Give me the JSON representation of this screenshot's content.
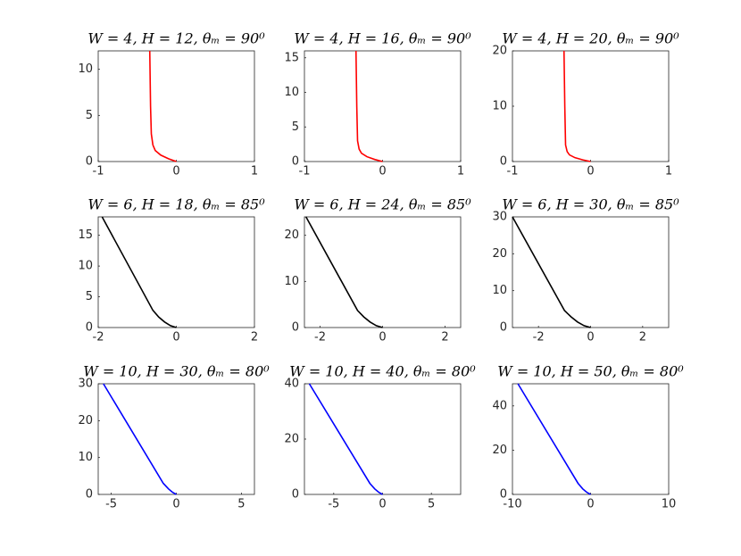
{
  "chart_data": [
    {
      "type": "line",
      "title": "W = 4, H = 12, θₘ = 90⁰",
      "x": [
        0,
        -0.1,
        -0.2,
        -0.27,
        -0.3,
        -0.32,
        -0.33,
        -0.34
      ],
      "values": [
        0,
        0.3,
        0.7,
        1.2,
        1.8,
        3,
        6,
        12
      ],
      "color": "#ff0000",
      "xlim": [
        -1,
        1
      ],
      "xticks": [
        -1,
        0,
        1
      ],
      "ylim": [
        0,
        12
      ],
      "yticks": [
        0,
        5,
        10
      ]
    },
    {
      "type": "line",
      "title": "W = 4, H = 16, θₘ = 90⁰",
      "x": [
        0,
        -0.1,
        -0.2,
        -0.27,
        -0.3,
        -0.32,
        -0.33,
        -0.34
      ],
      "values": [
        0,
        0.3,
        0.7,
        1.2,
        1.8,
        3,
        8,
        16
      ],
      "color": "#ff0000",
      "xlim": [
        -1,
        1
      ],
      "xticks": [
        -1,
        0,
        1
      ],
      "ylim": [
        0,
        16
      ],
      "yticks": [
        0,
        5,
        10,
        15
      ]
    },
    {
      "type": "line",
      "title": "W = 4, H = 20, θₘ = 90⁰",
      "x": [
        0,
        -0.1,
        -0.2,
        -0.27,
        -0.3,
        -0.32,
        -0.33,
        -0.34
      ],
      "values": [
        0,
        0.3,
        0.7,
        1.2,
        1.8,
        3,
        10,
        20
      ],
      "color": "#ff0000",
      "xlim": [
        -1,
        1
      ],
      "xticks": [
        -1,
        0,
        1
      ],
      "ylim": [
        0,
        20
      ],
      "yticks": [
        0,
        10,
        20
      ]
    },
    {
      "type": "line",
      "title": "W = 6, H = 18, θₘ = 85⁰",
      "x": [
        0,
        -0.15,
        -0.3,
        -0.45,
        -0.6,
        -1.9
      ],
      "values": [
        0,
        0.3,
        0.9,
        1.7,
        2.8,
        18
      ],
      "color": "#000000",
      "xlim": [
        -2,
        2
      ],
      "xticks": [
        -2,
        0,
        2
      ],
      "ylim": [
        0,
        18
      ],
      "yticks": [
        0,
        5,
        10,
        15
      ]
    },
    {
      "type": "line",
      "title": "W = 6, H = 24, θₘ = 85⁰",
      "x": [
        0,
        -0.2,
        -0.4,
        -0.6,
        -0.8,
        -2.45
      ],
      "values": [
        0,
        0.4,
        1.2,
        2.3,
        3.7,
        24
      ],
      "color": "#000000",
      "xlim": [
        -2.5,
        2.5
      ],
      "xticks": [
        -2,
        0,
        2
      ],
      "ylim": [
        0,
        24
      ],
      "yticks": [
        0,
        10,
        20
      ]
    },
    {
      "type": "line",
      "title": "W = 6, H = 30, θₘ = 85⁰",
      "x": [
        0,
        -0.25,
        -0.5,
        -0.75,
        -1,
        -3
      ],
      "values": [
        0,
        0.5,
        1.5,
        2.9,
        4.6,
        30
      ],
      "color": "#000000",
      "xlim": [
        -3,
        3
      ],
      "xticks": [
        -2,
        0,
        2
      ],
      "ylim": [
        0,
        30
      ],
      "yticks": [
        0,
        10,
        20,
        30
      ]
    },
    {
      "type": "line",
      "title": "W = 10, H = 30, θₘ = 80⁰",
      "x": [
        0,
        -0.3,
        -0.6,
        -1,
        -5.6
      ],
      "values": [
        0,
        0.6,
        1.5,
        3,
        30
      ],
      "color": "#0000ff",
      "xlim": [
        -6,
        6
      ],
      "xticks": [
        -5,
        0,
        5
      ],
      "ylim": [
        0,
        30
      ],
      "yticks": [
        0,
        10,
        20,
        30
      ]
    },
    {
      "type": "line",
      "title": "W = 10, H = 40, θₘ = 80⁰",
      "x": [
        0,
        -0.4,
        -0.8,
        -1.3,
        -7.5
      ],
      "values": [
        0,
        0.8,
        2,
        4,
        40
      ],
      "color": "#0000ff",
      "xlim": [
        -8,
        8
      ],
      "xticks": [
        -5,
        0,
        5
      ],
      "ylim": [
        0,
        40
      ],
      "yticks": [
        0,
        20,
        40
      ]
    },
    {
      "type": "line",
      "title": "W = 10, H = 50, θₘ = 80⁰",
      "x": [
        0,
        -0.5,
        -1,
        -1.6,
        -9.3
      ],
      "values": [
        0,
        1,
        2.5,
        5,
        50
      ],
      "color": "#0000ff",
      "xlim": [
        -10,
        10
      ],
      "xticks": [
        -10,
        0,
        10
      ],
      "ylim": [
        0,
        50
      ],
      "yticks": [
        0,
        20,
        40
      ]
    }
  ]
}
